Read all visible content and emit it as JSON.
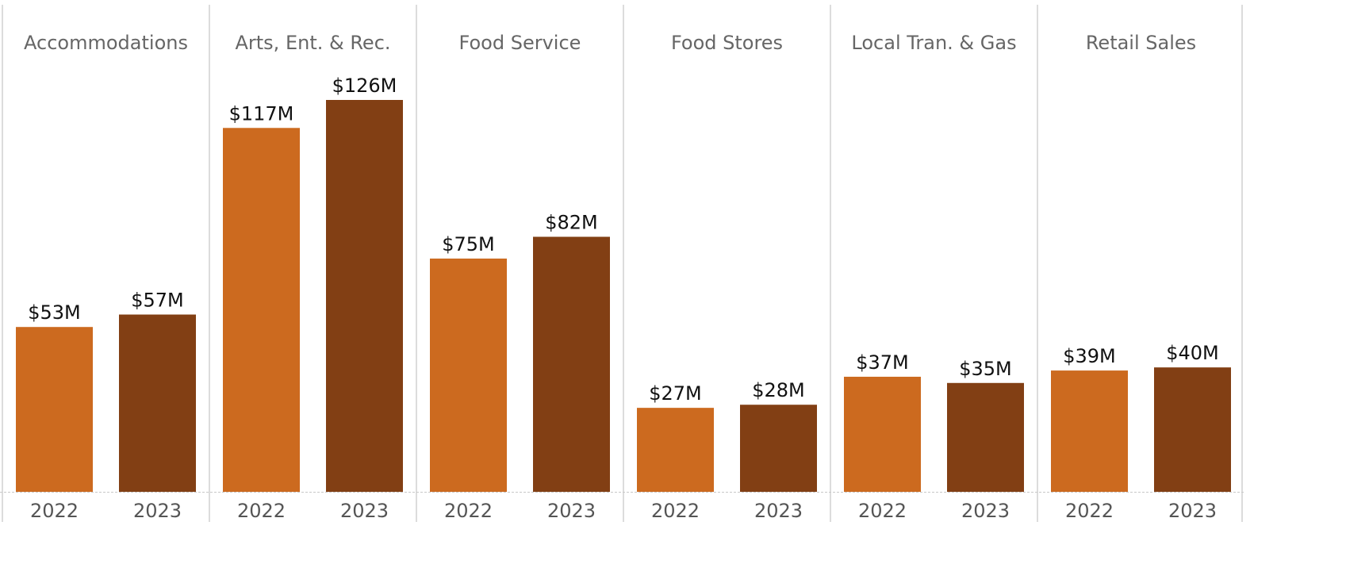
{
  "chart_data": {
    "type": "bar",
    "categories": [
      "2022",
      "2023"
    ],
    "panels": [
      {
        "name": "Accommodations",
        "values": [
          53,
          57
        ],
        "labels": [
          "$53M",
          "$57M"
        ]
      },
      {
        "name": "Arts, Ent. & Rec.",
        "values": [
          117,
          126
        ],
        "labels": [
          "$117M",
          "$126M"
        ]
      },
      {
        "name": "Food Service",
        "values": [
          75,
          82
        ],
        "labels": [
          "$75M",
          "$82M"
        ]
      },
      {
        "name": "Food Stores",
        "values": [
          27,
          28
        ],
        "labels": [
          "$27M",
          "$28M"
        ]
      },
      {
        "name": "Local Tran. & Gas",
        "values": [
          37,
          35
        ],
        "labels": [
          "$37M",
          "$35M"
        ]
      },
      {
        "name": "Retail Sales",
        "values": [
          39,
          40
        ],
        "labels": [
          "$39M",
          "$40M"
        ]
      }
    ],
    "unit": "$M",
    "ylim": [
      0,
      126
    ],
    "grid": false,
    "legend": "none",
    "colors": {
      "2022": "#CC6A1F",
      "2023": "#823F14",
      "divider": "#D0D0D0",
      "baseline": "#C8C8C8"
    }
  }
}
